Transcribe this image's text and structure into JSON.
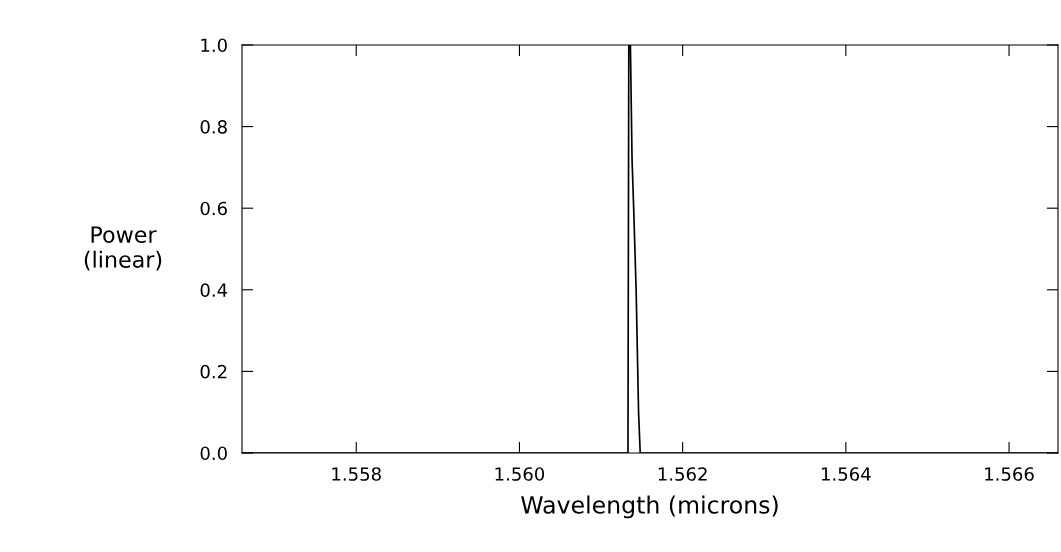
{
  "chart_data": {
    "type": "line",
    "xlabel": "Wavelength (microns)",
    "ylabel": "Power\n(linear)",
    "series": [
      {
        "color": "#000000",
        "x": [
          1.5566,
          1.56133,
          1.56134,
          1.56136,
          1.56138,
          1.5614,
          1.56143,
          1.56146,
          1.56148,
          1.5666
        ],
        "values": [
          0,
          0,
          1.0,
          1.0,
          0.72,
          0.6,
          0.4,
          0.1,
          0,
          0
        ]
      }
    ],
    "xlim": [
      1.5566,
      1.5666
    ],
    "xticks": [
      {
        "value": 1.558,
        "label": "1.558"
      },
      {
        "value": 1.56,
        "label": "1.560"
      },
      {
        "value": 1.562,
        "label": "1.562"
      },
      {
        "value": 1.564,
        "label": "1.564"
      },
      {
        "value": 1.566,
        "label": "1.566"
      }
    ],
    "ylim": [
      0,
      1
    ],
    "yticks": [
      {
        "value": 0,
        "label": "0.0"
      },
      {
        "value": 0.2,
        "label": "0.2"
      },
      {
        "value": 0.4,
        "label": "0.4"
      },
      {
        "value": 0.6,
        "label": "0.6"
      },
      {
        "value": 0.8,
        "label": "0.8"
      },
      {
        "value": 1,
        "label": "1.0"
      }
    ],
    "grid": false,
    "legend": false
  }
}
